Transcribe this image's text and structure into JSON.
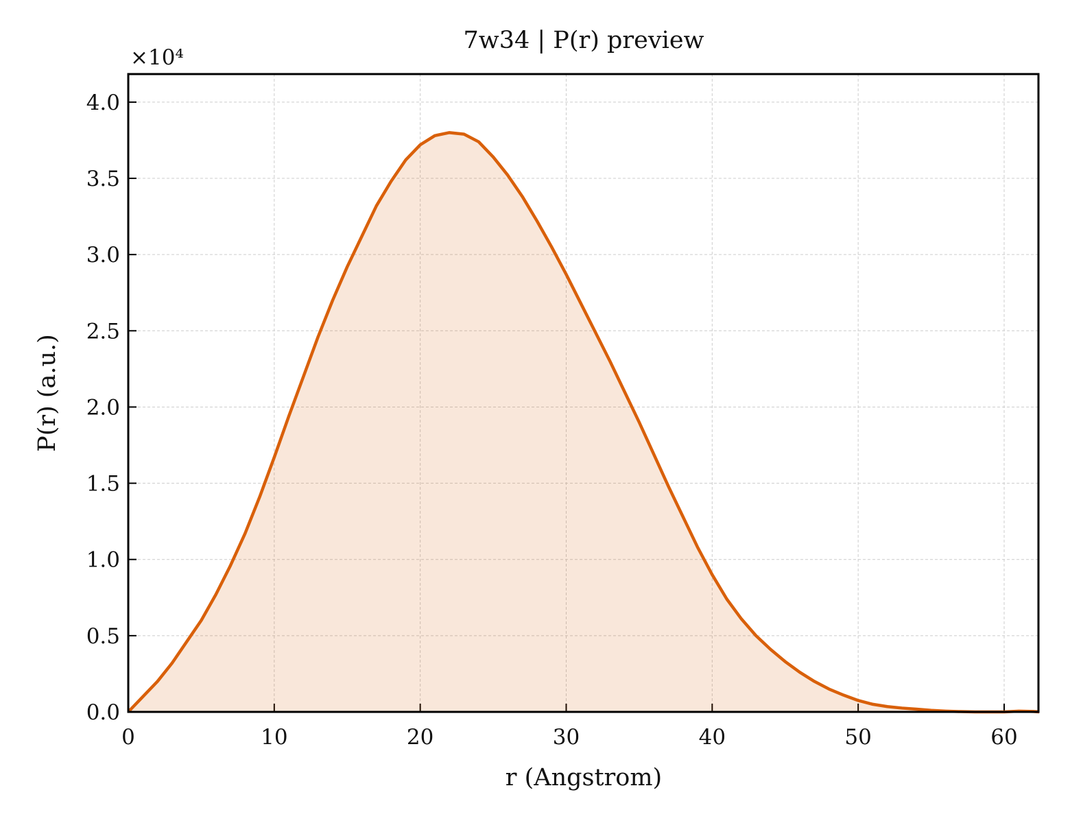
{
  "chart_data": {
    "type": "line",
    "title": "7w34 | P(r) preview",
    "xlabel": "r (Angstrom)",
    "ylabel": "P(r) (a.u.)",
    "y_offset_label": "×10⁴",
    "x": [
      0,
      1,
      2,
      3,
      4,
      5,
      6,
      7,
      8,
      9,
      10,
      11,
      12,
      13,
      14,
      15,
      16,
      17,
      18,
      19,
      20,
      21,
      22,
      23,
      24,
      25,
      26,
      27,
      28,
      29,
      30,
      31,
      32,
      33,
      34,
      35,
      36,
      37,
      38,
      39,
      40,
      41,
      42,
      43,
      44,
      45,
      46,
      47,
      48,
      49,
      50,
      51,
      52,
      53,
      54,
      55,
      56,
      57,
      58,
      59,
      60,
      61,
      62,
      62.4
    ],
    "values": [
      0,
      1000,
      2000,
      3200,
      4600,
      6000,
      7700,
      9600,
      11700,
      14100,
      16700,
      19400,
      22000,
      24600,
      27000,
      29200,
      31200,
      33200,
      34800,
      36200,
      37200,
      37800,
      38000,
      37900,
      37400,
      36400,
      35200,
      33800,
      32200,
      30500,
      28700,
      26800,
      24900,
      23000,
      21000,
      19000,
      16900,
      14800,
      12800,
      10800,
      9000,
      7400,
      6100,
      5000,
      4100,
      3300,
      2600,
      2000,
      1500,
      1100,
      750,
      500,
      350,
      250,
      180,
      100,
      50,
      20,
      0,
      0,
      0,
      50,
      30,
      0
    ],
    "color": "#d9600a",
    "fill_opacity": 0.15,
    "xlim": [
      0,
      62.35
    ],
    "ylim": [
      0,
      41840
    ],
    "xticks": [
      0,
      10,
      20,
      30,
      40,
      50,
      60
    ],
    "yticks": [
      {
        "value": 0,
        "label": "0.0"
      },
      {
        "value": 5000,
        "label": "0.5"
      },
      {
        "value": 10000,
        "label": "1.0"
      },
      {
        "value": 15000,
        "label": "1.5"
      },
      {
        "value": 20000,
        "label": "2.0"
      },
      {
        "value": 25000,
        "label": "2.5"
      },
      {
        "value": 30000,
        "label": "3.0"
      },
      {
        "value": 35000,
        "label": "3.5"
      },
      {
        "value": 40000,
        "label": "4.0"
      }
    ],
    "grid": true
  }
}
